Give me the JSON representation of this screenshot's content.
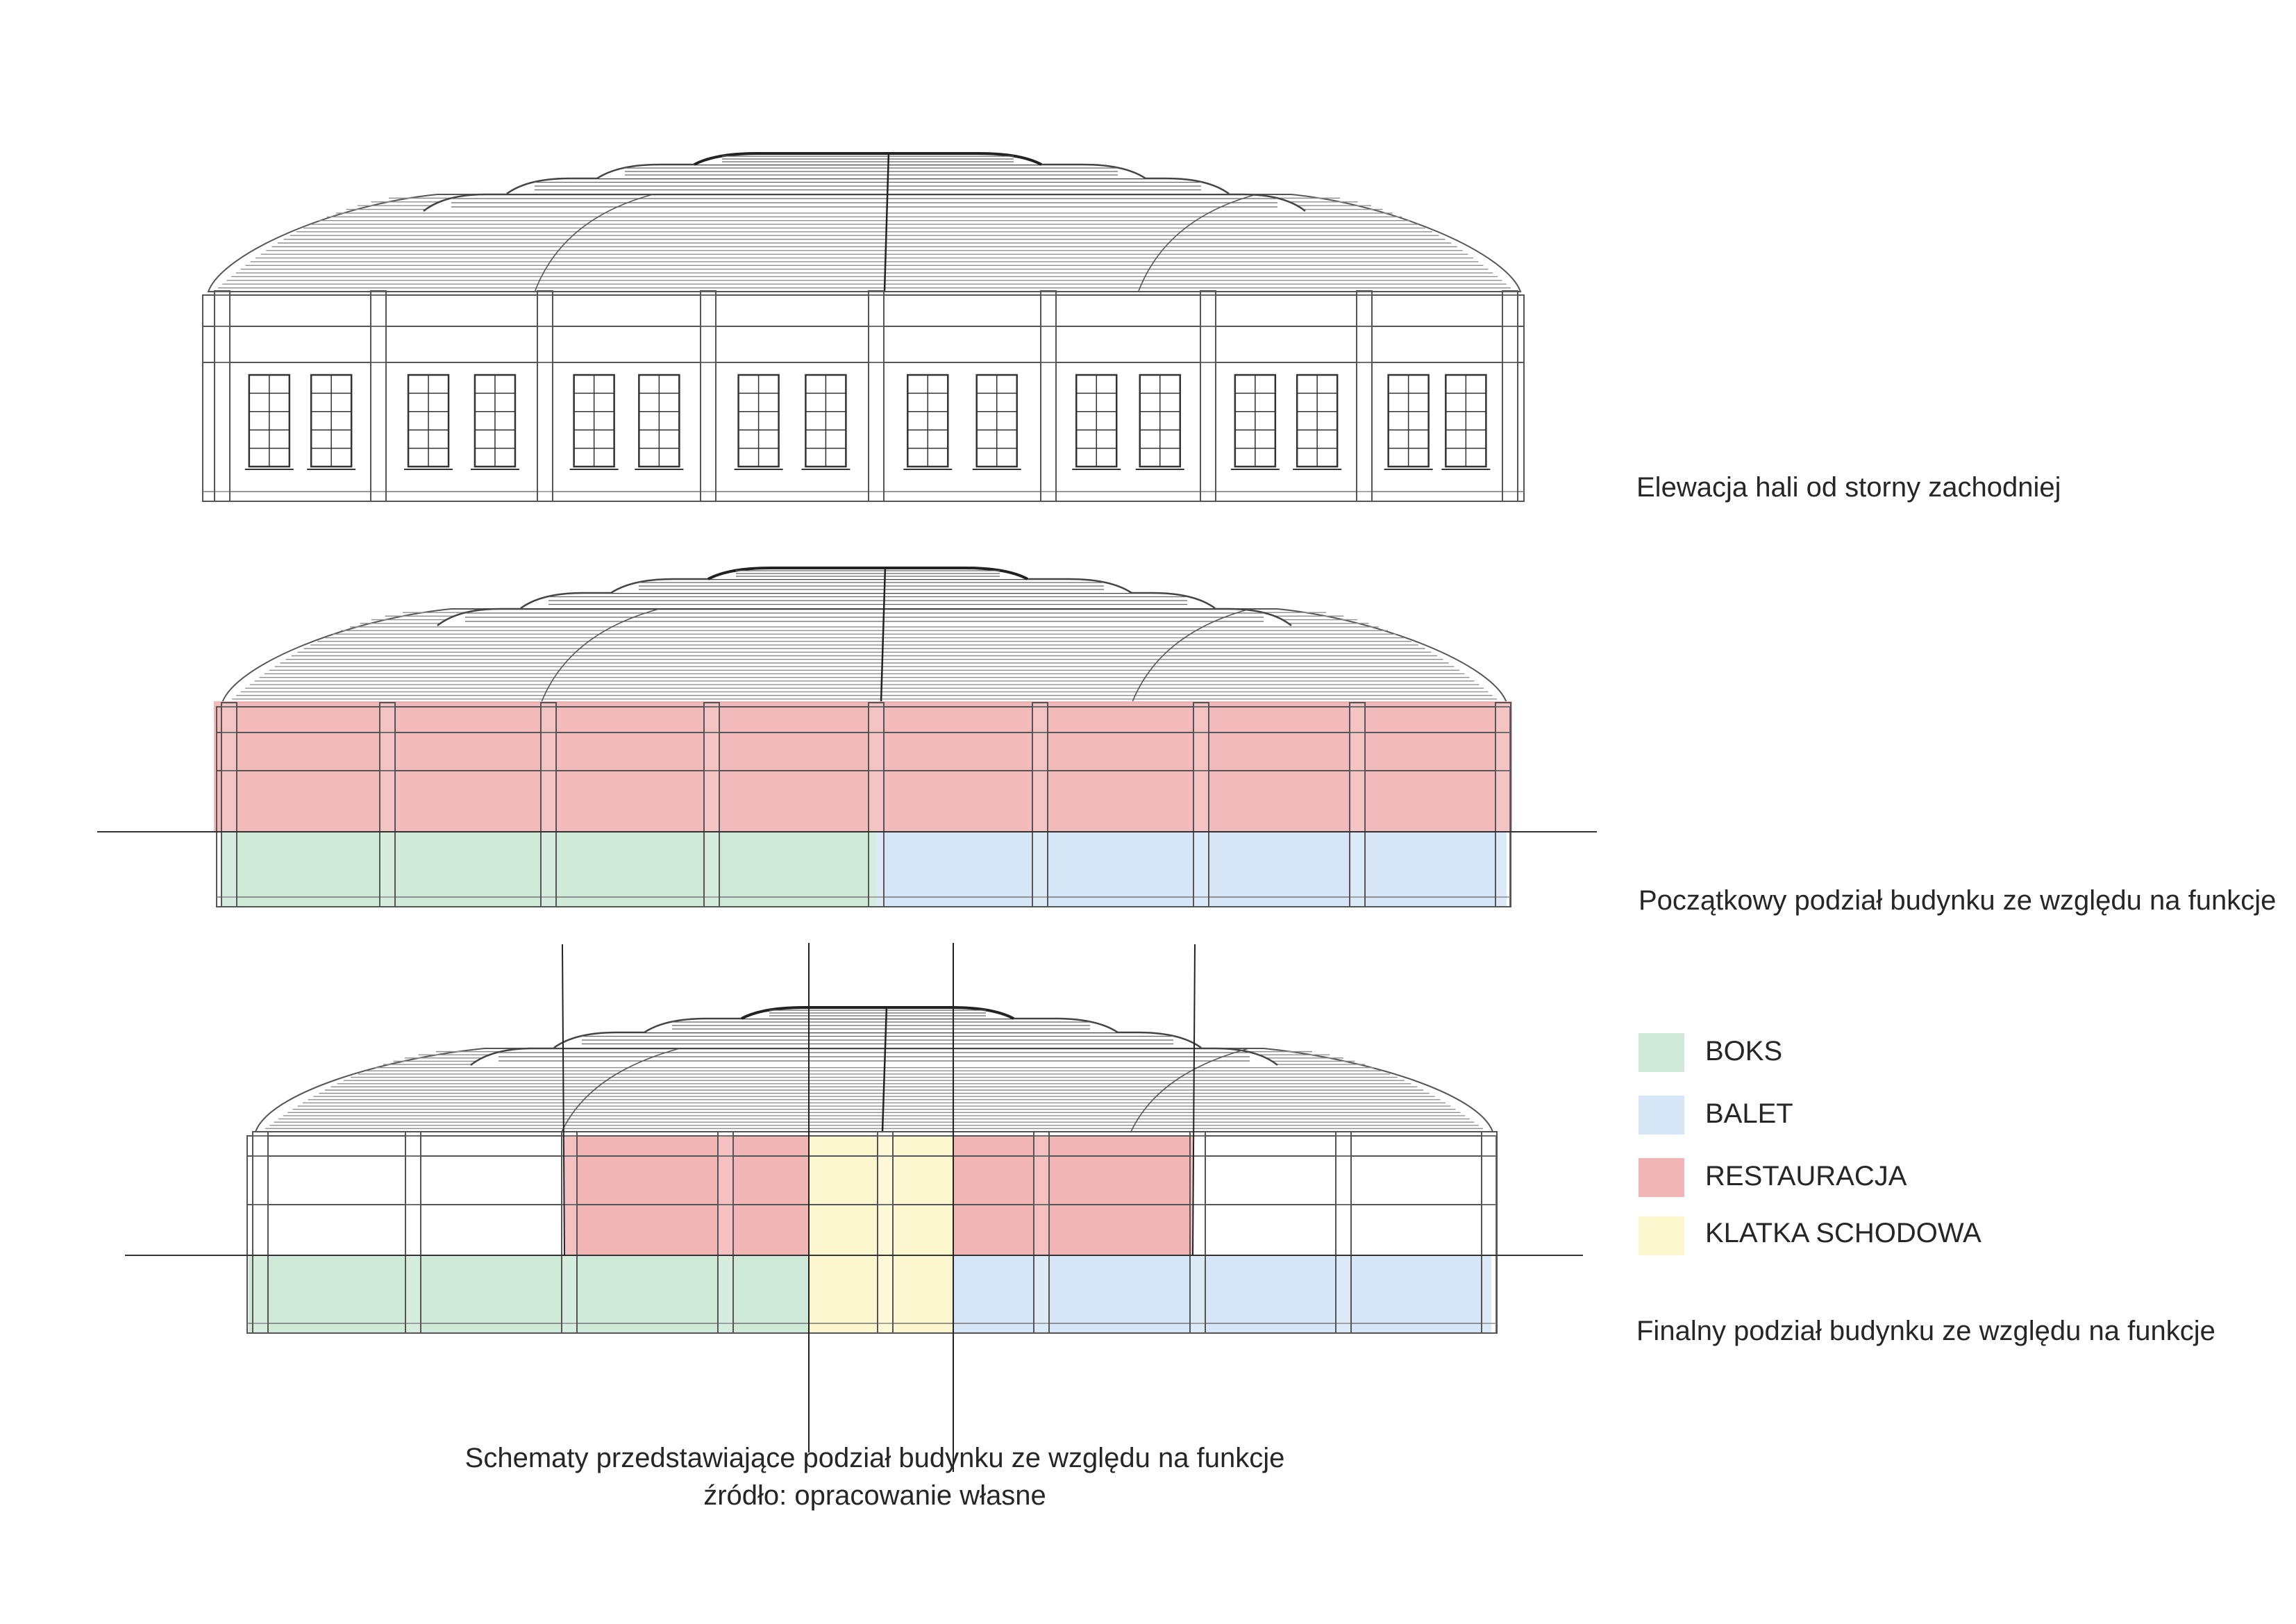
{
  "views": [
    {
      "id": "elevation",
      "label": "Elewacja hali od storny zachodniej"
    },
    {
      "id": "initial",
      "label": "Początkowy podział budynku ze względu na funkcje"
    },
    {
      "id": "final",
      "label": "Finalny podział budynku ze względu na funkcje"
    }
  ],
  "legend": [
    {
      "label": "BOKS",
      "color": "#cfe9d9"
    },
    {
      "label": "BALET",
      "color": "#d6e6f6"
    },
    {
      "label": "RESTAURACJA",
      "color": "#f2b6b7"
    },
    {
      "label": "KLATKA SCHODOWA",
      "color": "#fdf7cf"
    }
  ],
  "caption": {
    "line1": "Schematy przedstawiające podział budynku ze względu na funkcje",
    "line2": "źródło: opracowanie własne"
  },
  "colors": {
    "line": "#444444",
    "roof_line": "#8a8a8a",
    "boks": "#cfe9d9",
    "balet": "#d6e6f6",
    "restauracja": "#f2b6b7",
    "klatka": "#fdf7cf"
  }
}
